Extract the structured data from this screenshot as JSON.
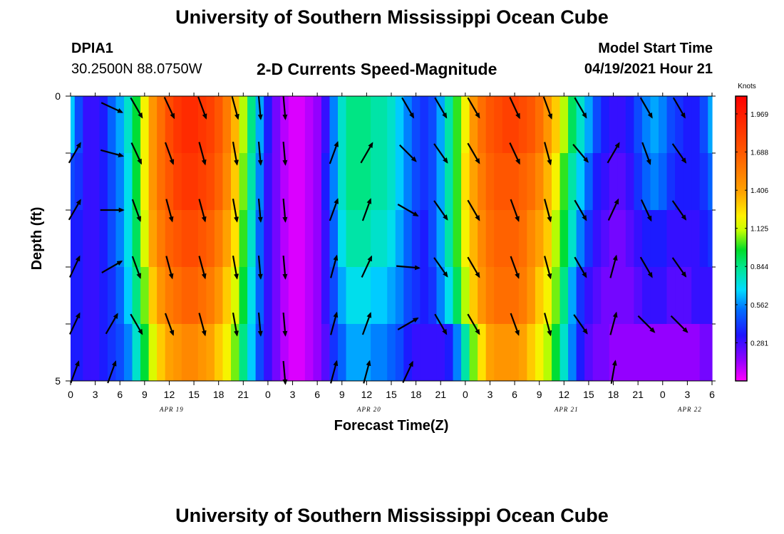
{
  "header": {
    "title_top": "University of Southern Mississippi Ocean Cube",
    "station_id": "DPIA1",
    "location": "30.2500N  88.0750W",
    "subtitle": "2-D Currents Speed-Magnitude",
    "model_start_label": "Model Start Time",
    "model_start_value": "04/19/2021 Hour 21",
    "title_bottom": "University of Southern Mississippi Ocean Cube"
  },
  "chart_data": {
    "type": "heatmap",
    "title": "2-D Currents Speed-Magnitude",
    "xlabel": "Forecast Time(Z)",
    "ylabel": "Depth (ft)",
    "x_ticks": [
      "0",
      "3",
      "6",
      "9",
      "12",
      "15",
      "18",
      "21",
      "0",
      "3",
      "6",
      "9",
      "12",
      "15",
      "18",
      "21",
      "0",
      "3",
      "6",
      "9",
      "12",
      "15",
      "18",
      "21",
      "0",
      "3",
      "6"
    ],
    "date_labels": [
      {
        "text": "APR 19",
        "tick_index": 4
      },
      {
        "text": "APR 20",
        "tick_index": 12
      },
      {
        "text": "APR 21",
        "tick_index": 20
      },
      {
        "text": "APR 22",
        "tick_index": 25
      }
    ],
    "y_ticks": [
      "0",
      "5"
    ],
    "ylim": [
      0,
      5
    ],
    "hours": [
      0,
      1,
      2,
      3,
      4,
      5,
      6,
      7,
      8,
      9,
      10,
      11,
      12,
      13,
      14,
      15,
      16,
      17,
      18,
      19,
      20,
      21,
      22,
      23,
      24,
      25,
      26,
      27,
      28,
      29,
      30,
      31,
      32,
      33,
      34,
      35,
      36,
      37,
      38,
      39,
      40,
      41,
      42,
      43,
      44,
      45,
      46,
      47,
      48,
      49,
      50,
      51,
      52,
      53,
      54,
      55,
      56,
      57,
      58,
      59,
      60,
      61,
      62,
      63,
      64,
      65,
      66,
      67,
      68,
      69,
      70,
      71,
      72,
      73,
      74,
      75,
      76,
      77,
      78
    ],
    "depths": [
      0.5,
      1.5,
      2.5,
      3.5,
      4.5
    ],
    "depth_rows": [
      {
        "depth": 0.5,
        "speed": [
          0.65,
          0.45,
          0.3,
          0.3,
          0.35,
          0.5,
          0.6,
          0.75,
          0.95,
          1.2,
          1.45,
          1.6,
          1.75,
          1.85,
          1.9,
          1.9,
          1.85,
          1.8,
          1.7,
          1.55,
          1.35,
          1.1,
          0.85,
          0.6,
          0.35,
          0.2,
          0.1,
          0.05,
          0.05,
          0.1,
          0.15,
          0.3,
          0.55,
          0.75,
          0.85,
          0.85,
          0.85,
          0.8,
          0.8,
          0.75,
          0.65,
          0.55,
          0.45,
          0.4,
          0.45,
          0.6,
          0.8,
          1.0,
          1.2,
          1.45,
          1.6,
          1.7,
          1.75,
          1.8,
          1.8,
          1.75,
          1.7,
          1.6,
          1.45,
          1.3,
          1.1,
          0.9,
          0.75,
          0.6,
          0.45,
          0.35,
          0.3,
          0.3,
          0.35,
          0.45,
          0.55,
          0.6,
          0.55,
          0.45,
          0.4,
          0.35,
          0.35,
          0.45,
          0.6
        ]
      },
      {
        "depth": 1.5,
        "speed": [
          0.45,
          0.4,
          0.3,
          0.3,
          0.35,
          0.45,
          0.55,
          0.7,
          0.95,
          1.2,
          1.45,
          1.6,
          1.7,
          1.8,
          1.85,
          1.85,
          1.8,
          1.75,
          1.65,
          1.5,
          1.3,
          1.05,
          0.8,
          0.55,
          0.3,
          0.2,
          0.1,
          0.05,
          0.05,
          0.1,
          0.15,
          0.35,
          0.55,
          0.75,
          0.85,
          0.85,
          0.85,
          0.8,
          0.8,
          0.75,
          0.65,
          0.55,
          0.45,
          0.4,
          0.45,
          0.6,
          0.8,
          1.0,
          1.25,
          1.4,
          1.55,
          1.65,
          1.7,
          1.7,
          1.7,
          1.65,
          1.6,
          1.5,
          1.35,
          1.2,
          1.0,
          0.8,
          0.65,
          0.5,
          0.35,
          0.3,
          0.25,
          0.25,
          0.3,
          0.4,
          0.5,
          0.55,
          0.5,
          0.4,
          0.35,
          0.35,
          0.35,
          0.4,
          0.5
        ]
      },
      {
        "depth": 2.5,
        "speed": [
          0.35,
          0.35,
          0.3,
          0.3,
          0.35,
          0.45,
          0.55,
          0.7,
          0.9,
          1.15,
          1.4,
          1.55,
          1.65,
          1.7,
          1.75,
          1.75,
          1.7,
          1.65,
          1.55,
          1.4,
          1.25,
          1.0,
          0.75,
          0.5,
          0.3,
          0.2,
          0.1,
          0.05,
          0.05,
          0.1,
          0.15,
          0.3,
          0.5,
          0.7,
          0.8,
          0.8,
          0.8,
          0.75,
          0.75,
          0.7,
          0.6,
          0.5,
          0.4,
          0.35,
          0.45,
          0.6,
          0.8,
          1.0,
          1.2,
          1.35,
          1.5,
          1.6,
          1.65,
          1.65,
          1.65,
          1.6,
          1.5,
          1.4,
          1.3,
          1.1,
          0.95,
          0.75,
          0.55,
          0.4,
          0.3,
          0.25,
          0.2,
          0.2,
          0.25,
          0.3,
          0.35,
          0.35,
          0.35,
          0.3,
          0.3,
          0.3,
          0.3,
          0.35,
          0.4
        ]
      },
      {
        "depth": 3.5,
        "speed": [
          0.35,
          0.35,
          0.3,
          0.3,
          0.35,
          0.4,
          0.5,
          0.65,
          0.85,
          1.05,
          1.3,
          1.45,
          1.55,
          1.6,
          1.65,
          1.65,
          1.6,
          1.55,
          1.45,
          1.3,
          1.15,
          0.95,
          0.7,
          0.5,
          0.3,
          0.2,
          0.1,
          0.05,
          0.05,
          0.1,
          0.15,
          0.3,
          0.45,
          0.6,
          0.7,
          0.7,
          0.7,
          0.65,
          0.65,
          0.6,
          0.55,
          0.45,
          0.4,
          0.35,
          0.4,
          0.55,
          0.7,
          0.9,
          1.1,
          1.3,
          1.45,
          1.55,
          1.6,
          1.6,
          1.6,
          1.55,
          1.45,
          1.3,
          1.2,
          1.05,
          0.85,
          0.6,
          0.4,
          0.3,
          0.25,
          0.2,
          0.2,
          0.2,
          0.2,
          0.25,
          0.3,
          0.3,
          0.3,
          0.25,
          0.25,
          0.25,
          0.3,
          0.3,
          0.3
        ]
      },
      {
        "depth": 4.5,
        "speed": [
          0.35,
          0.35,
          0.3,
          0.3,
          0.35,
          0.4,
          0.45,
          0.55,
          0.75,
          0.95,
          1.15,
          1.3,
          1.4,
          1.45,
          1.5,
          1.5,
          1.45,
          1.4,
          1.3,
          1.2,
          1.05,
          0.85,
          0.65,
          0.45,
          0.3,
          0.2,
          0.1,
          0.05,
          0.05,
          0.1,
          0.15,
          0.25,
          0.4,
          0.5,
          0.6,
          0.6,
          0.6,
          0.55,
          0.55,
          0.5,
          0.45,
          0.35,
          0.3,
          0.3,
          0.3,
          0.3,
          0.35,
          0.55,
          0.8,
          1.05,
          1.25,
          1.4,
          1.45,
          1.45,
          1.45,
          1.4,
          1.3,
          1.2,
          1.1,
          0.95,
          0.75,
          0.55,
          0.35,
          0.25,
          0.2,
          0.2,
          0.15,
          0.15,
          0.15,
          0.15,
          0.15,
          0.15,
          0.15,
          0.15,
          0.15,
          0.15,
          0.15,
          0.2,
          0.2
        ]
      }
    ],
    "vector_hours": [
      0.5,
      5,
      8,
      12,
      16,
      20,
      23,
      26,
      32,
      36,
      41,
      45,
      49,
      54,
      58,
      62,
      66,
      70,
      74
    ],
    "vector_directions_deg": [
      [
        null,
        115,
        150,
        155,
        160,
        165,
        175,
        175,
        null,
        null,
        150,
        150,
        150,
        155,
        160,
        150,
        null,
        150,
        150
      ],
      [
        30,
        105,
        155,
        160,
        165,
        170,
        175,
        175,
        20,
        30,
        135,
        145,
        150,
        155,
        165,
        140,
        30,
        160,
        145
      ],
      [
        30,
        90,
        160,
        165,
        165,
        170,
        175,
        175,
        20,
        20,
        120,
        145,
        150,
        160,
        165,
        150,
        25,
        155,
        145
      ],
      [
        25,
        60,
        160,
        165,
        165,
        170,
        175,
        175,
        15,
        25,
        95,
        145,
        150,
        160,
        165,
        150,
        15,
        150,
        145
      ],
      [
        25,
        30,
        150,
        160,
        165,
        170,
        175,
        175,
        15,
        20,
        60,
        150,
        150,
        160,
        165,
        145,
        15,
        135,
        135
      ],
      [
        20,
        20,
        null,
        null,
        null,
        null,
        null,
        175,
        15,
        15,
        25,
        null,
        null,
        null,
        null,
        null,
        10,
        null,
        null
      ]
    ],
    "colorbar": {
      "label": "Knots",
      "ticks": [
        "1.969",
        "1.688",
        "1.406",
        "1.125",
        "0.844",
        "0.562",
        "0.281"
      ],
      "range": [
        0,
        2.1
      ]
    }
  }
}
